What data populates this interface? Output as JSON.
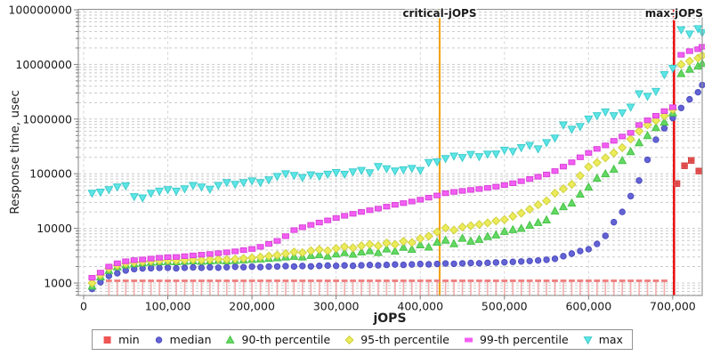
{
  "chart_data": {
    "type": "scatter",
    "title": "",
    "xlabel": "jOPS",
    "ylabel": "Response time, usec",
    "grid": {
      "style": "dashed",
      "h_color": "#c9c9c9",
      "v_color": "#d4d4d4"
    },
    "x_axis": {
      "lim": [
        -6345,
        735000
      ],
      "ticks": [
        0,
        100000,
        200000,
        300000,
        400000,
        500000,
        600000,
        700000
      ],
      "tick_labels": [
        "0",
        "100,000",
        "200,000",
        "300,000",
        "400,000",
        "500,000",
        "600,000",
        "700,000"
      ]
    },
    "y_axis": {
      "scale": "log",
      "lim": [
        592,
        101900000
      ],
      "ticks": [
        1000,
        10000,
        100000,
        1000000,
        10000000,
        100000000
      ],
      "tick_labels": [
        "1000",
        "10000",
        "100000",
        "1000000",
        "10000000",
        "100000000"
      ]
    },
    "annotations": [
      {
        "label": "critical-jOPS",
        "x": 423000,
        "color": "#f0a202",
        "width": 2
      },
      {
        "label": "max-jOPS",
        "x": 701500,
        "color": "#e90c0c",
        "width": 2.5
      }
    ],
    "x": [
      10000,
      20000,
      30000,
      40000,
      50000,
      60000,
      70000,
      80000,
      90000,
      100000,
      110000,
      120000,
      130000,
      140000,
      150000,
      160000,
      170000,
      180000,
      190000,
      200000,
      210000,
      220000,
      230000,
      240000,
      250000,
      260000,
      270000,
      280000,
      290000,
      300000,
      310000,
      320000,
      330000,
      340000,
      350000,
      360000,
      370000,
      380000,
      390000,
      400000,
      410000,
      420000,
      430000,
      440000,
      450000,
      460000,
      470000,
      480000,
      490000,
      500000,
      510000,
      520000,
      530000,
      540000,
      550000,
      560000,
      570000,
      580000,
      590000,
      600000,
      610000,
      620000,
      630000,
      640000,
      650000,
      660000,
      670000,
      680000,
      690000,
      700000,
      710000,
      720000,
      730000,
      735000
    ],
    "series": [
      {
        "name": "min",
        "marker": "tee",
        "fill": "#ee5555",
        "stroke": "#d24444",
        "x": [
          30000,
          40000,
          50000,
          60000,
          70000,
          80000,
          90000,
          100000,
          110000,
          120000,
          130000,
          140000,
          150000,
          160000,
          170000,
          180000,
          190000,
          200000,
          210000,
          220000,
          230000,
          240000,
          250000,
          260000,
          270000,
          280000,
          290000,
          300000,
          310000,
          320000,
          330000,
          340000,
          350000,
          360000,
          370000,
          380000,
          390000,
          400000,
          410000,
          420000,
          430000,
          440000,
          450000,
          460000,
          470000,
          480000,
          490000,
          500000,
          510000,
          520000,
          530000,
          540000,
          550000,
          560000,
          570000,
          580000,
          590000,
          600000,
          610000,
          620000,
          630000,
          640000,
          650000,
          660000,
          670000,
          680000,
          690000,
          705000,
          714000,
          722000,
          731000
        ],
        "values": [
          1100,
          1100,
          1100,
          1100,
          1100,
          1100,
          1100,
          1100,
          1100,
          1100,
          1100,
          1100,
          1100,
          1100,
          1100,
          1100,
          1100,
          1100,
          1100,
          1100,
          1100,
          1100,
          1100,
          1100,
          1100,
          1100,
          1100,
          1100,
          1100,
          1100,
          1100,
          1100,
          1100,
          1100,
          1100,
          1100,
          1100,
          1100,
          1100,
          1100,
          1100,
          1100,
          1100,
          1100,
          1100,
          1100,
          1100,
          1100,
          1100,
          1100,
          1100,
          1100,
          1100,
          1100,
          1100,
          1100,
          1100,
          1100,
          1100,
          1100,
          1100,
          1100,
          1100,
          1100,
          1100,
          1100,
          1100,
          66000,
          140000,
          175000,
          112000
        ]
      },
      {
        "name": "median",
        "marker": "circle",
        "fill": "#6363d6",
        "stroke": "#4d4dc0",
        "values": [
          780,
          1040,
          1350,
          1510,
          1700,
          1800,
          1850,
          1870,
          1890,
          1900,
          1860,
          1900,
          1930,
          1900,
          1940,
          1910,
          1950,
          1980,
          1950,
          1990,
          1960,
          2000,
          2010,
          2040,
          2010,
          2050,
          2020,
          2060,
          2090,
          2060,
          2100,
          2070,
          2110,
          2140,
          2110,
          2150,
          2180,
          2150,
          2190,
          2230,
          2200,
          2240,
          2280,
          2250,
          2290,
          2330,
          2300,
          2340,
          2380,
          2400,
          2440,
          2480,
          2530,
          2590,
          2670,
          2780,
          3100,
          3450,
          3850,
          4150,
          5200,
          7300,
          13000,
          20000,
          39000,
          75000,
          180000,
          420000,
          680000,
          1050000,
          1600000,
          2300000,
          3100000,
          4200000
        ]
      },
      {
        "name": "90-th percentile",
        "marker": "triangle-up",
        "fill": "#63d963",
        "stroke": "#46c246",
        "values": [
          880,
          1300,
          1700,
          1980,
          2150,
          2250,
          2330,
          2400,
          2440,
          2480,
          2450,
          2500,
          2540,
          2500,
          2550,
          2590,
          2550,
          2600,
          2650,
          2700,
          2760,
          2820,
          2900,
          3000,
          3080,
          3000,
          3200,
          3300,
          3120,
          3400,
          3600,
          3380,
          3700,
          3900,
          3620,
          4200,
          3850,
          4500,
          4150,
          5000,
          4550,
          5600,
          6100,
          5250,
          6600,
          5850,
          6300,
          7100,
          7600,
          8800,
          9500,
          10000,
          11400,
          12800,
          14300,
          20800,
          25000,
          29100,
          42300,
          57000,
          83000,
          100000,
          121000,
          175000,
          254000,
          370000,
          500000,
          700000,
          880000,
          1300000,
          6800000,
          8200000,
          9400000,
          10400000
        ]
      },
      {
        "name": "95-th percentile",
        "marker": "diamond",
        "fill": "#ecec5a",
        "stroke": "#d0d040",
        "values": [
          1000,
          1400,
          1850,
          2100,
          2280,
          2380,
          2450,
          2520,
          2570,
          2620,
          2580,
          2630,
          2680,
          2640,
          2690,
          2740,
          2700,
          2760,
          2820,
          2900,
          3000,
          3120,
          3250,
          3450,
          3700,
          3600,
          3900,
          4100,
          3900,
          4300,
          4600,
          4400,
          4800,
          5100,
          4800,
          5400,
          5100,
          5800,
          5500,
          6500,
          7200,
          8600,
          10200,
          9300,
          10600,
          11200,
          11800,
          12600,
          13700,
          14500,
          16600,
          19000,
          22400,
          27000,
          32000,
          44000,
          53000,
          64000,
          92000,
          134000,
          160000,
          195000,
          240000,
          300000,
          430000,
          600000,
          780000,
          940000,
          1150000,
          1500000,
          10000000,
          11500000,
          13000000,
          14500000
        ]
      },
      {
        "name": "99-th percentile",
        "marker": "square",
        "fill": "#f35ef3",
        "stroke": "#d843d8",
        "values": [
          1250,
          1550,
          2000,
          2300,
          2500,
          2620,
          2700,
          2800,
          2900,
          2980,
          3000,
          3100,
          3200,
          3300,
          3400,
          3520,
          3650,
          3800,
          4000,
          4200,
          4600,
          5200,
          5900,
          7200,
          9300,
          10500,
          11600,
          12800,
          14000,
          15500,
          17000,
          18500,
          20000,
          21500,
          23000,
          25000,
          27000,
          29000,
          31000,
          33500,
          36500,
          40000,
          44000,
          46500,
          48500,
          50500,
          52500,
          55000,
          58000,
          62000,
          67000,
          73000,
          80000,
          88000,
          97000,
          112000,
          135000,
          162000,
          200000,
          240000,
          285000,
          330000,
          400000,
          480000,
          560000,
          780000,
          950000,
          1150000,
          1400000,
          1650000,
          15000000,
          17500000,
          19000000,
          21000000
        ]
      },
      {
        "name": "max",
        "marker": "triangle-down",
        "fill": "#5ee6e6",
        "stroke": "#3ecccc",
        "values": [
          44000,
          46000,
          51000,
          57000,
          60000,
          38000,
          36000,
          44000,
          48000,
          51000,
          48000,
          53000,
          61000,
          57000,
          52000,
          61000,
          69000,
          64000,
          69000,
          74000,
          69000,
          77000,
          89000,
          100000,
          93000,
          85000,
          95000,
          90000,
          98000,
          105000,
          98000,
          108000,
          115000,
          104000,
          135000,
          123000,
          112000,
          118000,
          125000,
          115000,
          160000,
          165000,
          190000,
          210000,
          198000,
          225000,
          205000,
          228000,
          230000,
          270000,
          255000,
          300000,
          330000,
          285000,
          370000,
          450000,
          780000,
          650000,
          730000,
          1000000,
          1150000,
          1350000,
          1150000,
          1300000,
          1650000,
          2900000,
          2600000,
          3200000,
          6500000,
          8500000,
          43000000,
          36000000,
          45000000,
          38000000
        ]
      }
    ]
  }
}
